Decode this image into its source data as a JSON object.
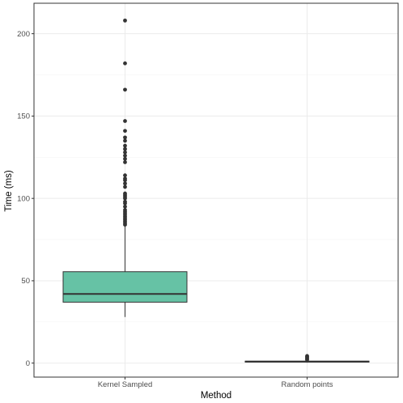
{
  "chart_data": {
    "type": "boxplot",
    "xlabel": "Method",
    "ylabel": "Time (ms)",
    "categories": [
      "Kernel Sampled",
      "Random points"
    ],
    "y_ticks": [
      0,
      50,
      100,
      150,
      200
    ],
    "ylim": [
      -8.5,
      218.5
    ],
    "grid": true,
    "boxes": [
      {
        "category": "Kernel Sampled",
        "min": 28,
        "q1": 37,
        "median": 42,
        "q3": 55.5,
        "max": 83,
        "fill": "#66c2a5",
        "outliers": [
          84,
          85,
          86,
          87,
          88,
          89,
          90,
          91,
          92,
          93,
          95,
          97,
          98,
          100,
          101,
          102,
          103,
          107,
          109,
          111,
          112,
          114,
          122,
          124,
          126,
          128,
          130,
          132,
          135,
          137,
          141,
          147,
          166,
          182,
          208
        ]
      },
      {
        "category": "Random points",
        "min": 0.3,
        "q1": 0.6,
        "median": 0.9,
        "q3": 1.2,
        "max": 1.6,
        "fill": "#66c2a5",
        "outliers": [
          2.0,
          2.6,
          3.2,
          3.8,
          4.3
        ]
      }
    ]
  },
  "colors": {
    "panel_border": "#333333",
    "grid_major": "#ebebeb",
    "grid_minor": "#f5f5f5",
    "box_stroke": "#333333",
    "outlier": "#333333"
  }
}
